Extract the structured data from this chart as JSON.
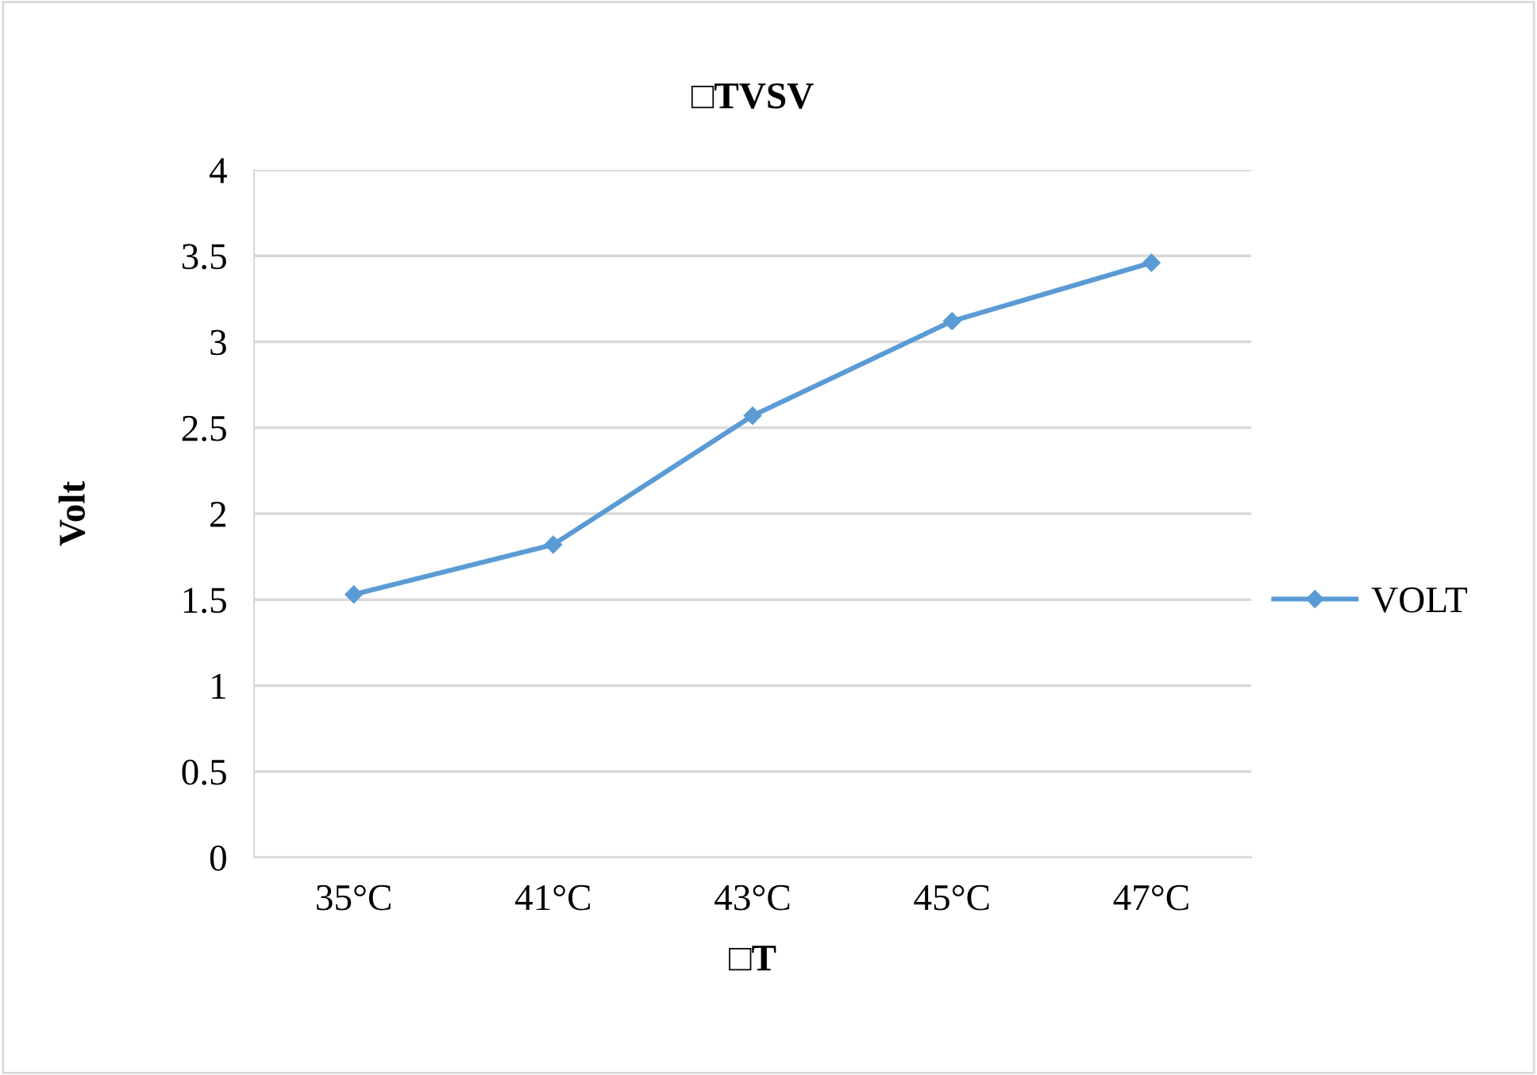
{
  "chart_data": {
    "type": "line",
    "title": "□TVSV",
    "xlabel": "□T",
    "ylabel": "Volt",
    "categories": [
      "35°C",
      "41°C",
      "43°C",
      "45°C",
      "47°C"
    ],
    "series": [
      {
        "name": "VOLT",
        "color": "#5b9bd5",
        "values": [
          1.53,
          1.82,
          2.57,
          3.12,
          3.46
        ]
      }
    ],
    "ylim": [
      0,
      4
    ],
    "yticks": [
      0,
      0.5,
      1,
      1.5,
      2,
      2.5,
      3,
      3.5,
      4
    ],
    "grid": "y",
    "legend": "right",
    "marker": "diamond",
    "line_style": "solid"
  }
}
